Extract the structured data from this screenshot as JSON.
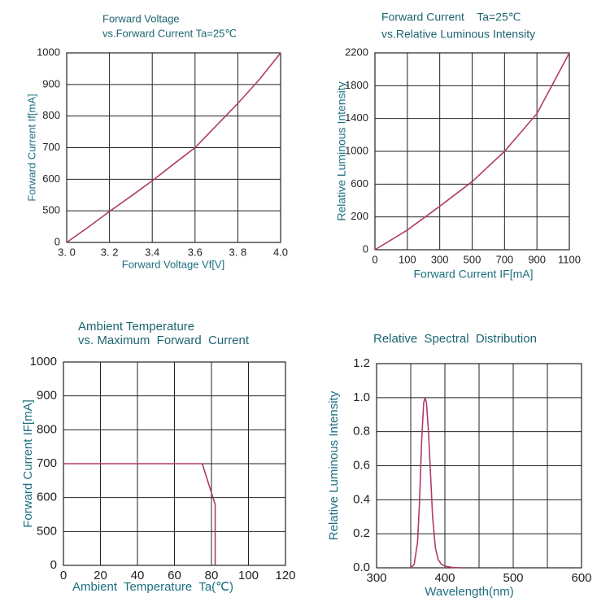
{
  "chart_data": [
    {
      "type": "line",
      "title": "Forward Voltage",
      "subtitle": "vs.Forward Current Ta=25℃",
      "x_label": "Forward Voltage Vf[V]",
      "y_label": "Forward Current If[mA]",
      "x": [
        3.0,
        3.1,
        3.2,
        3.3,
        3.4,
        3.5,
        3.6,
        3.7,
        3.8,
        3.9,
        4.0
      ],
      "values": [
        0,
        240,
        490,
        546,
        595,
        648,
        700,
        770,
        840,
        915,
        1000
      ],
      "color": "#b03a6e",
      "xlim": [
        3,
        4
      ],
      "ylim": [
        0,
        1000
      ],
      "xticks": [
        {
          "value": 3,
          "label": "3. 0"
        },
        {
          "value": 3.2,
          "label": "3. 2"
        },
        3.4,
        3.6,
        {
          "value": 3.8,
          "label": "3. 8"
        },
        {
          "value": 4,
          "label": "4.0"
        }
      ],
      "yticks": [
        0,
        500,
        600,
        700,
        800,
        900,
        1000
      ],
      "yticks_evenly_spaced": true,
      "xticks_evenly_spaced": false,
      "grid": true
    },
    {
      "type": "line",
      "title": "Forward Current    Ta=25℃",
      "subtitle": "vs.Relative Luminous Intensity",
      "x_label": "Forward Current IF[mA]",
      "y_label": "Relative Luminous Intensity",
      "x": [
        0,
        100,
        300,
        500,
        700,
        900,
        1100
      ],
      "values": [
        0,
        120,
        330,
        630,
        1000,
        1460,
        2200
      ],
      "color": "#b03a6e",
      "xlim": [
        0,
        1100
      ],
      "ylim": [
        0,
        2200
      ],
      "xticks": [
        0,
        100,
        300,
        500,
        700,
        900,
        1100
      ],
      "yticks": [
        0,
        200,
        600,
        1000,
        1400,
        1800,
        2200
      ],
      "yticks_evenly_spaced": true,
      "xticks_evenly_spaced": true,
      "grid": true
    },
    {
      "type": "line",
      "title": "Ambient Temperature",
      "subtitle": "vs. Maximum  Forward  Current",
      "x_label": "Ambient  Temperature  Ta(℃)",
      "y_label": "Forward Current IF[mA]",
      "x": [
        0,
        75,
        82,
        82
      ],
      "values": [
        700,
        700,
        580,
        0
      ],
      "color": "#b03a6e",
      "xlim": [
        0,
        120
      ],
      "ylim": [
        0,
        1000
      ],
      "xticks": [
        0,
        20,
        40,
        60,
        80,
        100,
        120
      ],
      "yticks": [
        0,
        500,
        600,
        700,
        800,
        900,
        1000
      ],
      "yticks_evenly_spaced": true,
      "xticks_evenly_spaced": false,
      "grid": true
    },
    {
      "type": "line",
      "title": "Relative  Spectral  Distribution",
      "x_label": "Wavelength(nm)",
      "y_label": "Relative Luminous Intensity",
      "x": [
        350,
        355,
        360,
        363,
        366,
        369,
        371,
        373,
        376,
        379,
        382,
        386,
        390,
        395,
        400,
        410,
        425
      ],
      "values": [
        0,
        0.02,
        0.15,
        0.4,
        0.75,
        0.97,
        1.0,
        0.97,
        0.8,
        0.55,
        0.3,
        0.12,
        0.05,
        0.02,
        0.01,
        0.003,
        0
      ],
      "color": "#b03a6e",
      "xlim": [
        300,
        600
      ],
      "ylim": [
        0,
        1.2
      ],
      "xticks": [
        300,
        400,
        500,
        600
      ],
      "x_minor_grid": [
        350,
        450,
        550
      ],
      "yticks": [
        {
          "value": 0,
          "label": "0.0"
        },
        0.2,
        0.4,
        0.6,
        0.8,
        {
          "value": 1,
          "label": "1.0"
        },
        1.2
      ],
      "yticks_evenly_spaced": false,
      "xticks_evenly_spaced": false,
      "grid": true
    }
  ]
}
